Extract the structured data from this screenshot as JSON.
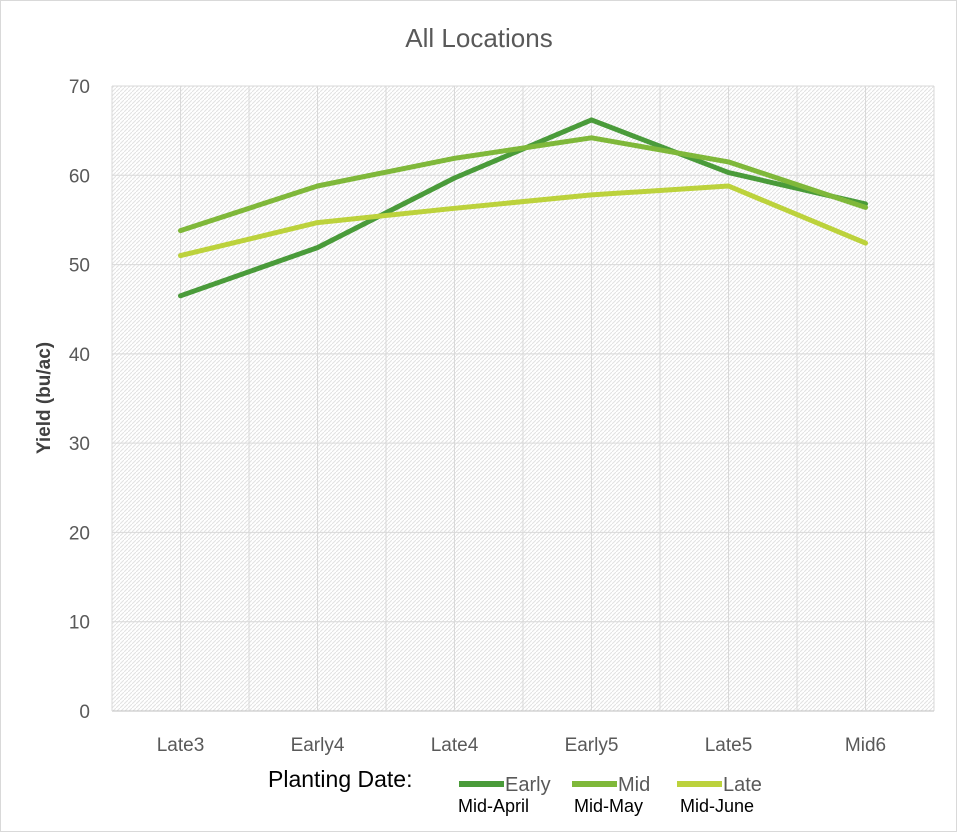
{
  "chart_data": {
    "type": "line",
    "title": "All Locations",
    "ylabel": "Yield (bu/ac)",
    "xlabel": "",
    "ylim": [
      0,
      70
    ],
    "yticks": [
      "0",
      "10",
      "20",
      "30",
      "40",
      "50",
      "60",
      "70"
    ],
    "categories": [
      "Late3",
      "Early4",
      "Late4",
      "Early5",
      "Late5",
      "Mid6"
    ],
    "grid": true,
    "legend_position": "bottom",
    "legend_title": "Planting Date:",
    "series": [
      {
        "name": "Early",
        "sublabel": "Mid-April",
        "color": "#4a9b3a",
        "values": [
          46.5,
          51.9,
          59.7,
          66.2,
          60.3,
          56.8
        ]
      },
      {
        "name": "Mid",
        "sublabel": "Mid-May",
        "color": "#7fb83a",
        "values": [
          53.8,
          58.8,
          61.9,
          64.2,
          61.5,
          56.4
        ]
      },
      {
        "name": "Late",
        "sublabel": "Mid-June",
        "color": "#bcd23c",
        "values": [
          51.0,
          54.7,
          56.3,
          57.8,
          58.8,
          52.4
        ]
      }
    ]
  }
}
